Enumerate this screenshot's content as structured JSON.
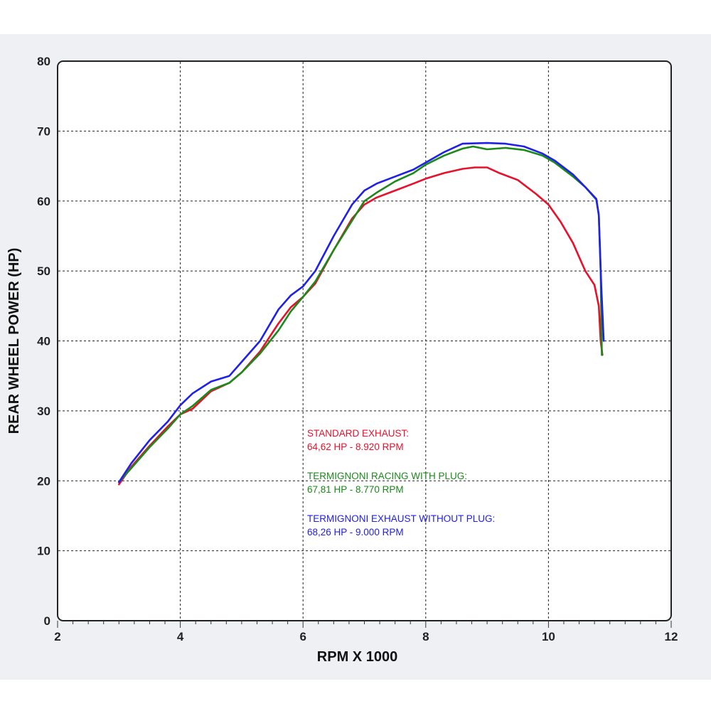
{
  "chart_data": {
    "type": "line",
    "title": "",
    "xlabel": "RPM X 1000",
    "ylabel": "REAR WHEEL POWER (HP)",
    "xlim": [
      2,
      12
    ],
    "ylim": [
      0,
      80
    ],
    "xticks": [
      2,
      4,
      6,
      8,
      10,
      12
    ],
    "yticks": [
      0,
      10,
      20,
      30,
      40,
      50,
      60,
      70,
      80
    ],
    "grid": true,
    "legend": "none",
    "annotations": [
      {
        "line1": "STANDARD EXHAUST:",
        "line2": "64,62 HP - 8.920 RPM",
        "color": "#e8102a"
      },
      {
        "line1": "TERMIGNONI RACING WITH PLUG:",
        "line2": "67,81 HP - 8.770 RPM",
        "color": "#1a8a1a"
      },
      {
        "line1": "TERMIGNONI EXHAUST WITHOUT PLUG:",
        "line2": "68,26 HP - 9.000 RPM",
        "color": "#2020e8"
      }
    ],
    "series": [
      {
        "color": "#e8102a",
        "x": [
          3.0,
          3.2,
          3.5,
          3.8,
          4.0,
          4.2,
          4.5,
          4.8,
          5.0,
          5.3,
          5.6,
          5.8,
          6.0,
          6.2,
          6.5,
          6.8,
          7.0,
          7.2,
          7.5,
          7.8,
          8.0,
          8.3,
          8.6,
          8.8,
          9.0,
          9.2,
          9.5,
          9.8,
          10.0,
          10.2,
          10.4,
          10.6,
          10.75,
          10.82,
          10.85,
          10.88
        ],
        "y": [
          19.5,
          22,
          25,
          27.8,
          29.5,
          30.3,
          32.8,
          34,
          35.5,
          38.5,
          42.5,
          44.8,
          46.3,
          48.2,
          53,
          57.5,
          59.5,
          60.5,
          61.5,
          62.5,
          63.2,
          64,
          64.6,
          64.8,
          64.8,
          64,
          63,
          61,
          59.5,
          57,
          54,
          50,
          48,
          45,
          40,
          38
        ]
      },
      {
        "color": "#1a8a1a",
        "x": [
          3.0,
          3.2,
          3.5,
          3.8,
          4.0,
          4.2,
          4.5,
          4.8,
          5.0,
          5.3,
          5.6,
          5.8,
          6.0,
          6.2,
          6.5,
          6.8,
          7.0,
          7.2,
          7.5,
          7.8,
          8.0,
          8.3,
          8.6,
          8.77,
          9.0,
          9.3,
          9.6,
          9.9,
          10.1,
          10.4,
          10.6,
          10.78,
          10.82,
          10.85,
          10.87
        ],
        "y": [
          19.8,
          21.8,
          24.8,
          27.5,
          29.5,
          30.7,
          33,
          34,
          35.5,
          38.2,
          41.5,
          44.2,
          46.3,
          48.5,
          53,
          57.2,
          60,
          61.2,
          62.8,
          64,
          65.2,
          66.5,
          67.5,
          67.8,
          67.4,
          67.6,
          67.3,
          66.5,
          65.5,
          63.5,
          62,
          60.2,
          58,
          50,
          38
        ]
      },
      {
        "color": "#2020e8",
        "x": [
          3.0,
          3.2,
          3.5,
          3.8,
          4.0,
          4.2,
          4.5,
          4.8,
          5.0,
          5.3,
          5.6,
          5.8,
          6.0,
          6.2,
          6.5,
          6.8,
          7.0,
          7.2,
          7.5,
          7.8,
          8.0,
          8.3,
          8.6,
          9.0,
          9.3,
          9.6,
          9.9,
          10.1,
          10.4,
          10.6,
          10.78,
          10.82,
          10.86,
          10.9
        ],
        "y": [
          19.8,
          22.5,
          25.8,
          28.5,
          30.8,
          32.5,
          34.2,
          35,
          37,
          40,
          44.5,
          46.5,
          47.8,
          50,
          55,
          59.5,
          61.5,
          62.5,
          63.5,
          64.5,
          65.5,
          67,
          68.2,
          68.3,
          68.2,
          67.8,
          66.8,
          65.8,
          63.8,
          62,
          60.3,
          58,
          48,
          40
        ]
      }
    ]
  }
}
